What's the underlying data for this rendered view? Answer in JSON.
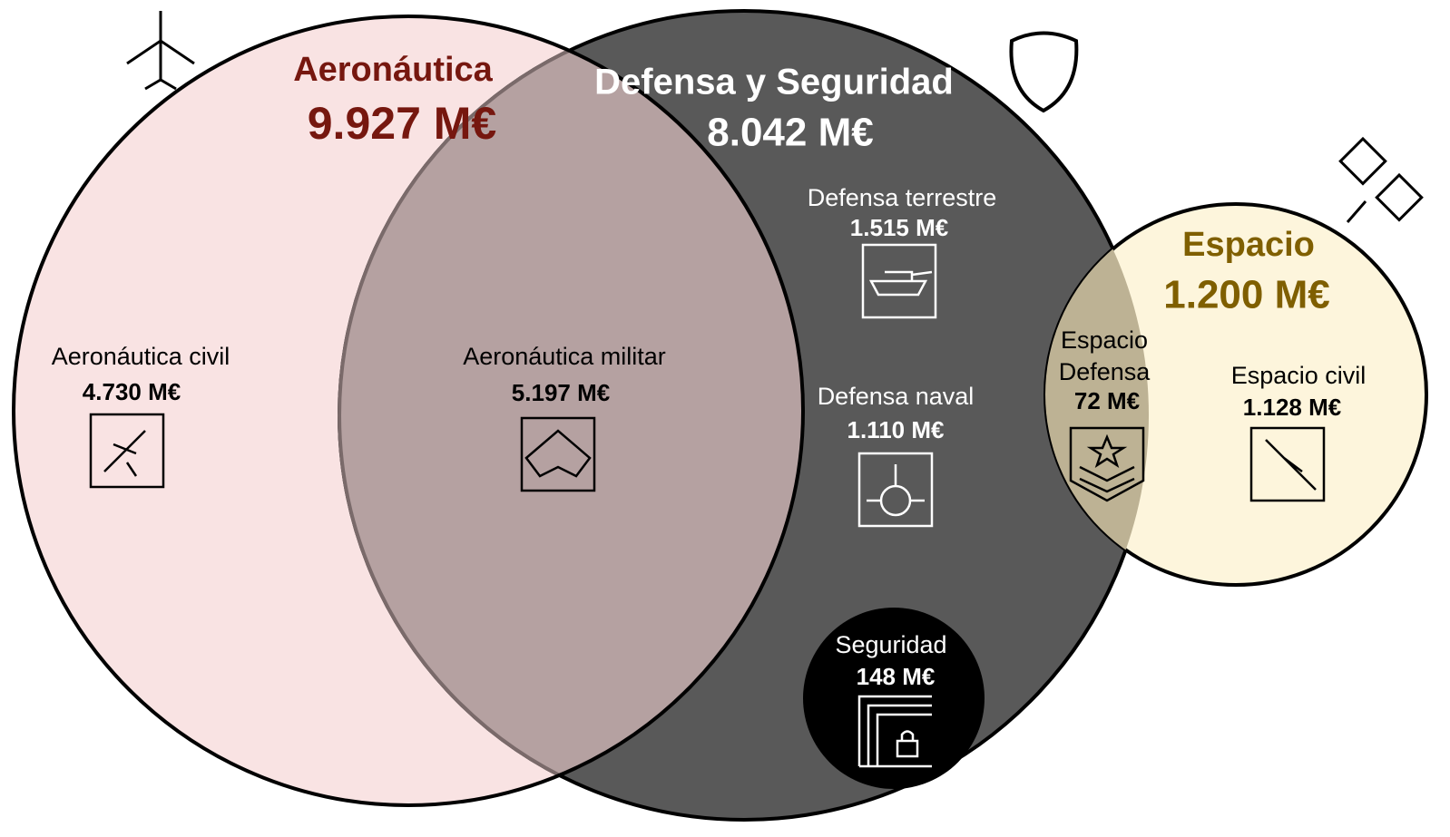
{
  "sets": [
    {
      "label": "Aeronáutica",
      "value": "9.927 M€"
    },
    {
      "label": "Defensa y Seguridad",
      "value": "8.042 M€"
    },
    {
      "label": "Espacio",
      "value": "1.200 M€"
    }
  ],
  "regions": [
    {
      "label": "Aeronáutica civil",
      "value": "4.730 M€"
    },
    {
      "label": "Aeronáutica militar",
      "value": "5.197 M€"
    },
    {
      "label": "Defensa terrestre",
      "value": "1.515 M€"
    },
    {
      "label": "Defensa naval",
      "value": "1.110 M€"
    },
    {
      "label": "Seguridad",
      "value": "148 M€"
    },
    {
      "label": [
        "Espacio",
        "Defensa"
      ],
      "value": "72 M€"
    },
    {
      "label": "Espacio civil",
      "value": "1.128 M€"
    }
  ]
}
